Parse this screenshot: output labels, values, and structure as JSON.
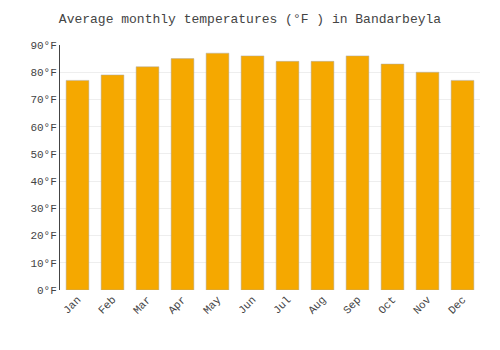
{
  "chart_data": {
    "type": "bar",
    "title": "Average monthly temperatures (°F ) in Bandarbeyla",
    "categories": [
      "Jan",
      "Feb",
      "Mar",
      "Apr",
      "May",
      "Jun",
      "Jul",
      "Aug",
      "Sep",
      "Oct",
      "Nov",
      "Dec"
    ],
    "values": [
      77,
      79,
      82,
      85,
      87,
      86,
      84,
      84,
      86,
      83,
      80,
      77
    ],
    "color": "#F5A800",
    "ylim": [
      0,
      90
    ],
    "yticks": [
      {
        "value": 0,
        "label": "0°F"
      },
      {
        "value": 10,
        "label": "10°F"
      },
      {
        "value": 20,
        "label": "20°F"
      },
      {
        "value": 30,
        "label": "30°F"
      },
      {
        "value": 40,
        "label": "40°F"
      },
      {
        "value": 50,
        "label": "50°F"
      },
      {
        "value": 60,
        "label": "60°F"
      },
      {
        "value": 70,
        "label": "70°F"
      },
      {
        "value": 80,
        "label": "80°F"
      },
      {
        "value": 90,
        "label": "90°F"
      }
    ],
    "grid": true
  }
}
